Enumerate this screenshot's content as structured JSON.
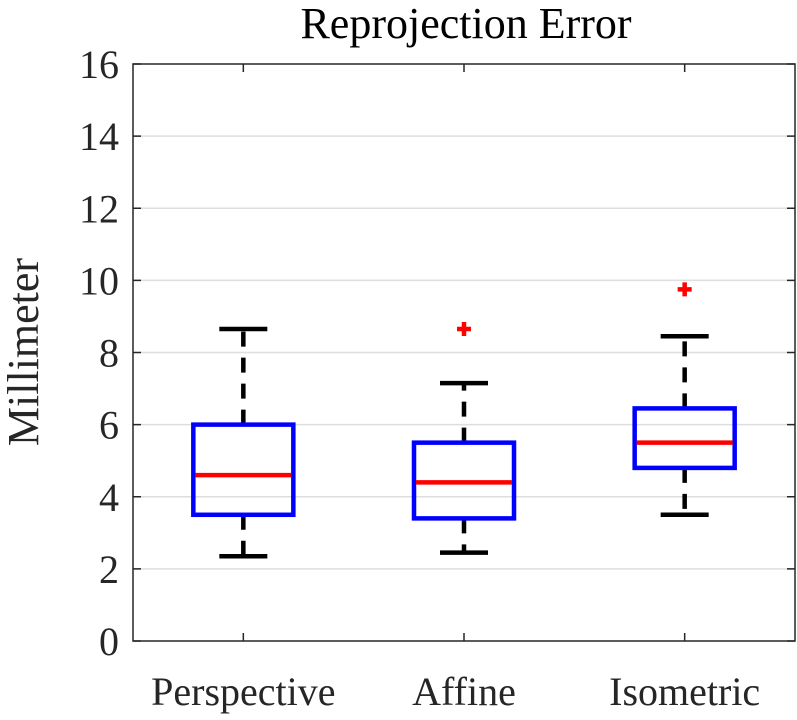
{
  "chart_data": {
    "type": "boxplot",
    "title": "Reprojection Error",
    "xlabel": "",
    "ylabel": "Millimeter",
    "ylim": [
      0,
      16
    ],
    "yticks": [
      0,
      2,
      4,
      6,
      8,
      10,
      12,
      14,
      16
    ],
    "grid": true,
    "categories": [
      "Perspective",
      "Affine",
      "Isometric"
    ],
    "boxes": [
      {
        "name": "Perspective",
        "whisker_low": 2.35,
        "q1": 3.5,
        "median": 4.6,
        "q3": 6.0,
        "whisker_high": 8.65,
        "outliers": []
      },
      {
        "name": "Affine",
        "whisker_low": 2.45,
        "q1": 3.4,
        "median": 4.4,
        "q3": 5.5,
        "whisker_high": 7.15,
        "outliers": [
          8.65
        ]
      },
      {
        "name": "Isometric",
        "whisker_low": 3.5,
        "q1": 4.8,
        "median": 5.5,
        "q3": 6.45,
        "whisker_high": 8.45,
        "outliers": [
          9.75
        ]
      }
    ],
    "colors": {
      "box": "#0000ff",
      "median": "#ff0000",
      "whisker": "#000000",
      "outlier": "#ff0000",
      "grid": "#dedede",
      "axis": "#262626"
    }
  }
}
